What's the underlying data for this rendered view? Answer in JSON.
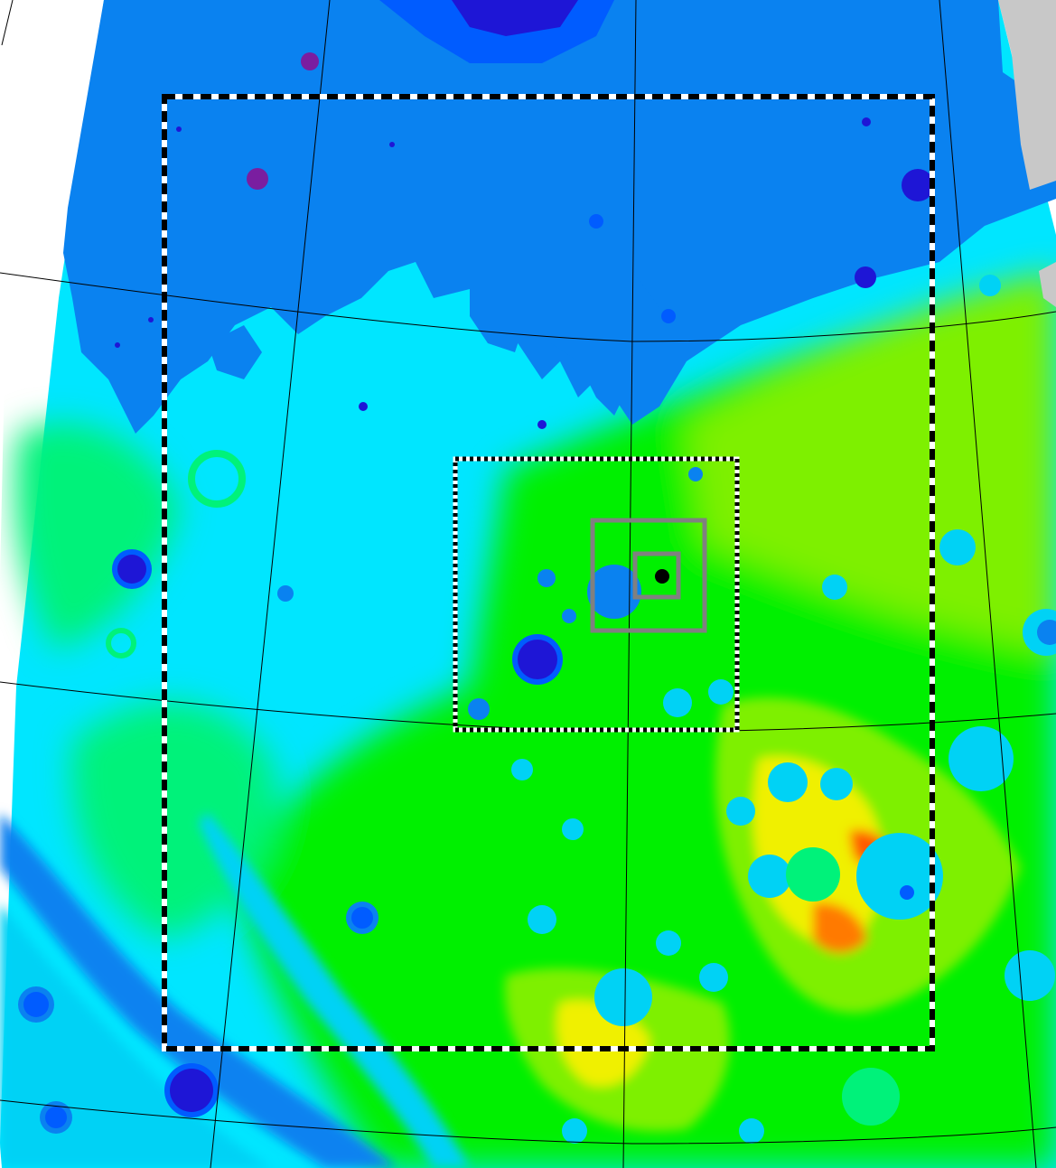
{
  "map": {
    "type": "topographic-elevation-map",
    "projection": "polar-stereographic-grid",
    "color_ramp": [
      "#1e16d6",
      "#005cff",
      "#0a82f0",
      "#00d2f5",
      "#00e6ff",
      "#00f27a",
      "#00f000",
      "#7ef000",
      "#f0f000",
      "#ff7a00",
      "#ff5a00"
    ],
    "colors": {
      "background": "#ffffff",
      "no_data": "#c8c8c8",
      "graticule": "#000000",
      "dashed_box_a": "#000000",
      "dashed_box_b": "#ffffff",
      "inner_box": "#808080",
      "marker": "#000000"
    },
    "overlays": [
      {
        "name": "outer-region-box",
        "style": "dashed-black-white"
      },
      {
        "name": "middle-region-box",
        "style": "checkered-black-white"
      },
      {
        "name": "inner-region-box",
        "style": "gray"
      },
      {
        "name": "innermost-region-box",
        "style": "gray"
      }
    ],
    "marker_icon": "filled-circle-icon"
  }
}
